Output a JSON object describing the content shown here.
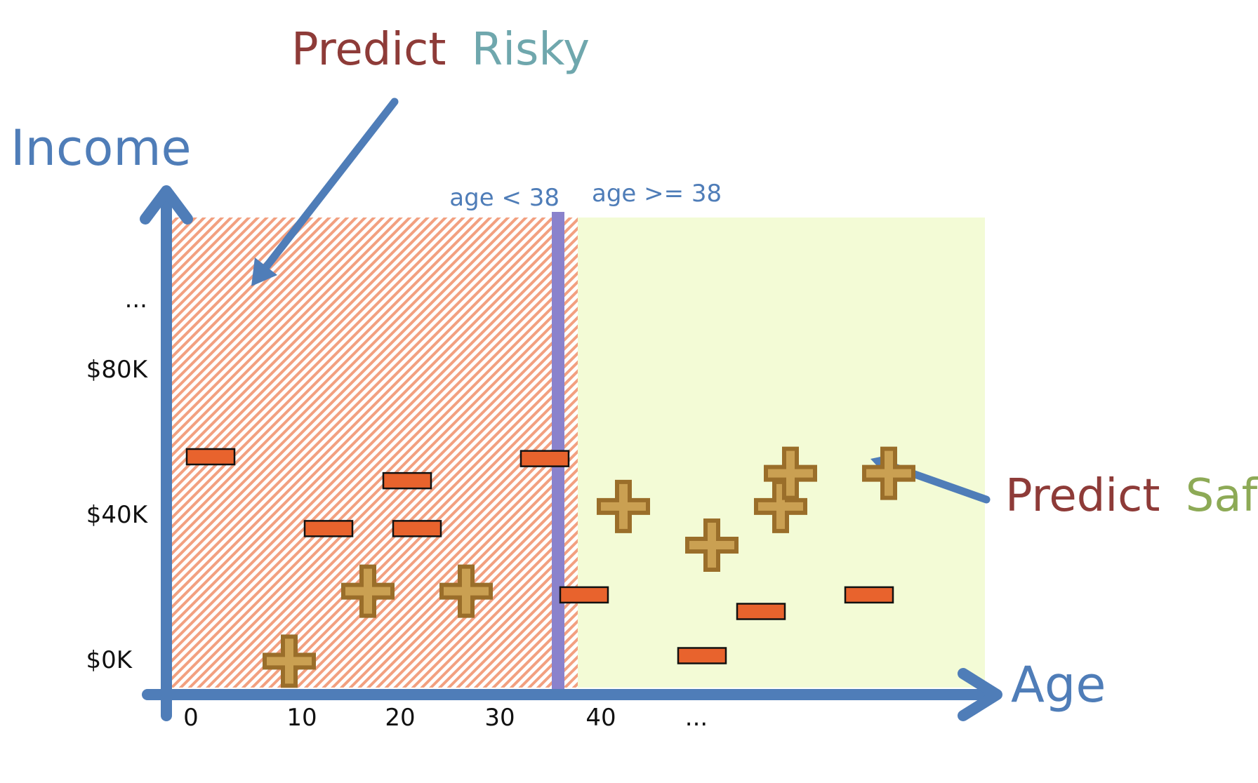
{
  "chart_data": {
    "type": "scatter",
    "title": "",
    "xlabel": "Age",
    "ylabel": "Income",
    "x_ticks": [
      "0",
      "10",
      "20",
      "30",
      "40",
      "..."
    ],
    "y_ticks": [
      "$0K",
      "$40K",
      "$80K",
      "..."
    ],
    "split": {
      "value": 38,
      "left_label": "age < 38",
      "right_label": "age >= 38"
    },
    "annotations": {
      "risky": {
        "word1": "Predict",
        "word2": "Risky"
      },
      "safe": {
        "word1": "Predict",
        "word2": "Safe"
      }
    },
    "series": [
      {
        "class": "minus",
        "points": [
          {
            "x": 2,
            "y": 112
          },
          {
            "x": 22,
            "y": 99
          },
          {
            "x": 14,
            "y": 73
          },
          {
            "x": 23,
            "y": 73
          },
          {
            "x": 36,
            "y": 111
          },
          {
            "x": 40,
            "y": 37
          },
          {
            "x": 58,
            "y": 28
          },
          {
            "x": 69,
            "y": 37
          },
          {
            "x": 52,
            "y": 4
          }
        ]
      },
      {
        "class": "plus",
        "points": [
          {
            "x": 10,
            "y": 1
          },
          {
            "x": 18,
            "y": 39
          },
          {
            "x": 28,
            "y": 39
          },
          {
            "x": 44,
            "y": 85
          },
          {
            "x": 60,
            "y": 85
          },
          {
            "x": 61,
            "y": 103
          },
          {
            "x": 71,
            "y": 103
          },
          {
            "x": 53,
            "y": 64
          }
        ]
      }
    ],
    "colors": {
      "axis": "#4f7db8",
      "split_line": "#8a82cc",
      "risky_region": "#f2a080",
      "safe_region": "#f3fbd6",
      "minus_fill": "#e8632d",
      "plus_fill": "#caa052",
      "plus_stroke": "#9a6e2a",
      "predict_text": "#8e3b38",
      "risky_text": "#6fa7ad",
      "safe_text": "#8daa56"
    }
  }
}
